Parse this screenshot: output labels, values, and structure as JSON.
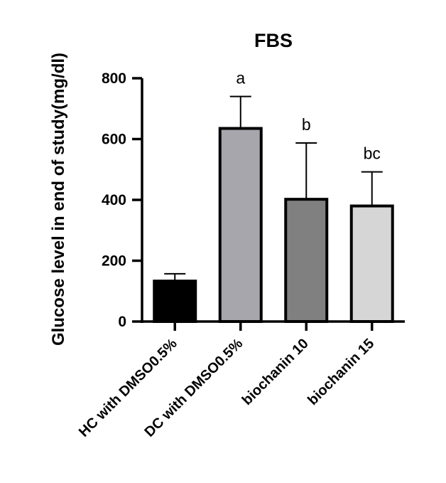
{
  "chart_data": {
    "type": "bar",
    "title": "FBS",
    "xlabel": "",
    "ylabel": "Glucose level in end of study(mg/dl)",
    "ylim": [
      0,
      800
    ],
    "yticks": [
      0,
      200,
      400,
      600,
      800
    ],
    "categories": [
      "HC with DMSO0.5%",
      "DC with DMSO0.5%",
      "biochanin 10",
      "biochanin 15"
    ],
    "values": [
      133,
      635,
      402,
      380
    ],
    "error_upper": [
      157,
      740,
      587,
      492
    ],
    "annotations": [
      "",
      "a",
      "b",
      "bc"
    ],
    "bar_colors": [
      "#000000",
      "#a6a6ac",
      "#808080",
      "#d6d6d6"
    ],
    "grid": false,
    "legend": "none"
  }
}
